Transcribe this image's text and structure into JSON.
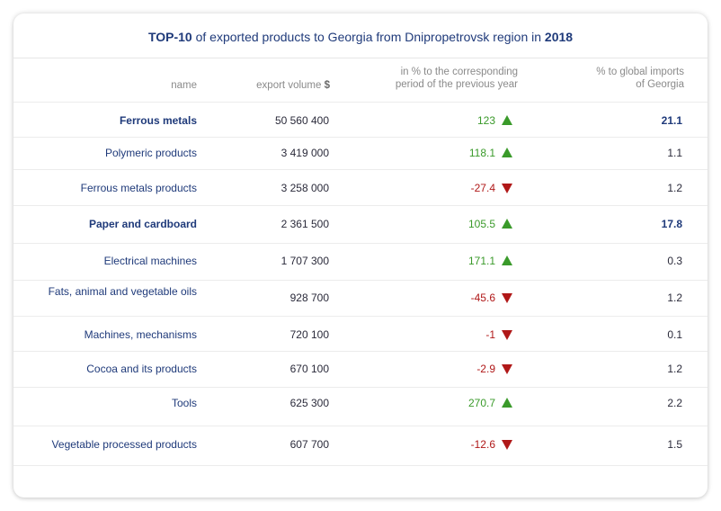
{
  "title": {
    "prefix": "TOP-10",
    "middle": " of exported products to Georgia from Dnipropetrovsk region in ",
    "year": "2018"
  },
  "columns": {
    "name": "name",
    "volume_text": "export volume ",
    "volume_unit": "$",
    "pct_line1": "in % to the corresponding",
    "pct_line2": "period of the previous year",
    "global_line1": "% to global imports",
    "global_line2": "of Georgia"
  },
  "rows": [
    {
      "name": "Ferrous metals",
      "volume": "50 560 400",
      "pct": "123",
      "dir": "up",
      "global": "21.1",
      "bold": true
    },
    {
      "name": "Polymeric  products",
      "volume": "3 419 000",
      "pct": "118.1",
      "dir": "up",
      "global": "1.1",
      "bold": false
    },
    {
      "name": "Ferrous metals products",
      "volume": "3 258 000",
      "pct": "-27.4",
      "dir": "down",
      "global": "1.2",
      "bold": false
    },
    {
      "name": "Paper and cardboard",
      "volume": "2 361 500",
      "pct": "105.5",
      "dir": "up",
      "global": "17.8",
      "bold": true
    },
    {
      "name": "Electrical machines",
      "volume": "1 707 300",
      "pct": "171.1",
      "dir": "up",
      "global": "0.3",
      "bold": false
    },
    {
      "name": "Fats, animal and vegetable oils",
      "volume": "928 700",
      "pct": "-45.6",
      "dir": "down",
      "global": "1.2",
      "bold": false
    },
    {
      "name": "Machines, mechanisms",
      "volume": "720 100",
      "pct": "-1",
      "dir": "down",
      "global": "0.1",
      "bold": false
    },
    {
      "name": "Cocoa and its products",
      "volume": "670 100",
      "pct": "-2.9",
      "dir": "down",
      "global": "1.2",
      "bold": false
    },
    {
      "name": "Tools",
      "volume": "625 300",
      "pct": "270.7",
      "dir": "up",
      "global": "2.2",
      "bold": false
    },
    {
      "name": "Vegetable processed products",
      "volume": "607 700",
      "pct": "-12.6",
      "dir": "down",
      "global": "1.5",
      "bold": false
    }
  ],
  "colors": {
    "title": "#1f3a7a",
    "up": "#3a9a2a",
    "down": "#b01818"
  },
  "icons": {
    "up": "triangle-up-icon",
    "down": "triangle-down-icon"
  }
}
